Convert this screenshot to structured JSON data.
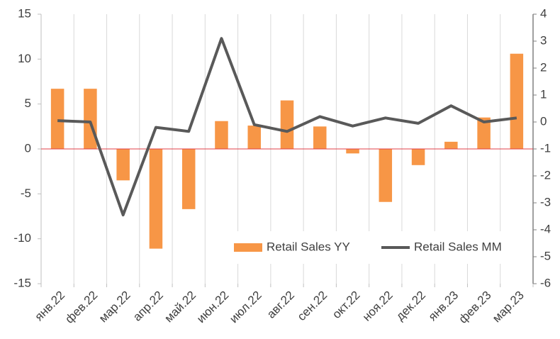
{
  "chart_data": {
    "type": "bar_line",
    "categories": [
      "янв.22",
      "фев.22",
      "мар.22",
      "апр.22",
      "май.22",
      "июн.22",
      "июл.22",
      "авг.22",
      "сен.22",
      "окт.22",
      "ноя.22",
      "дек.22",
      "янв.23",
      "фев.23",
      "мар.23"
    ],
    "series": [
      {
        "name": "Retail Sales YY",
        "color": "#f79646",
        "kind": "bar",
        "values": [
          6.7,
          6.7,
          -3.5,
          -11.1,
          -6.7,
          3.1,
          2.6,
          5.4,
          2.5,
          -0.5,
          -5.9,
          -1.8,
          0.8,
          3.5,
          10.6
        ]
      },
      {
        "name": "Retail Sales MM",
        "color": "#595959",
        "kind": "line",
        "axis": "y2",
        "values": [
          0.05,
          0.0,
          -3.45,
          -0.2,
          -0.35,
          3.1,
          -0.1,
          -0.35,
          0.2,
          -0.15,
          0.15,
          -0.05,
          0.6,
          0.0,
          0.15
        ]
      }
    ],
    "ylim": [
      -15,
      15
    ],
    "yticks": [
      -15,
      -10,
      -5,
      0,
      5,
      10,
      15
    ],
    "y2lim": [
      -6,
      4
    ],
    "y2ticks": [
      -6,
      -5,
      -4,
      -3,
      -2,
      -1,
      0,
      1,
      2,
      3,
      4
    ],
    "grid": true,
    "legend": "lower right"
  }
}
